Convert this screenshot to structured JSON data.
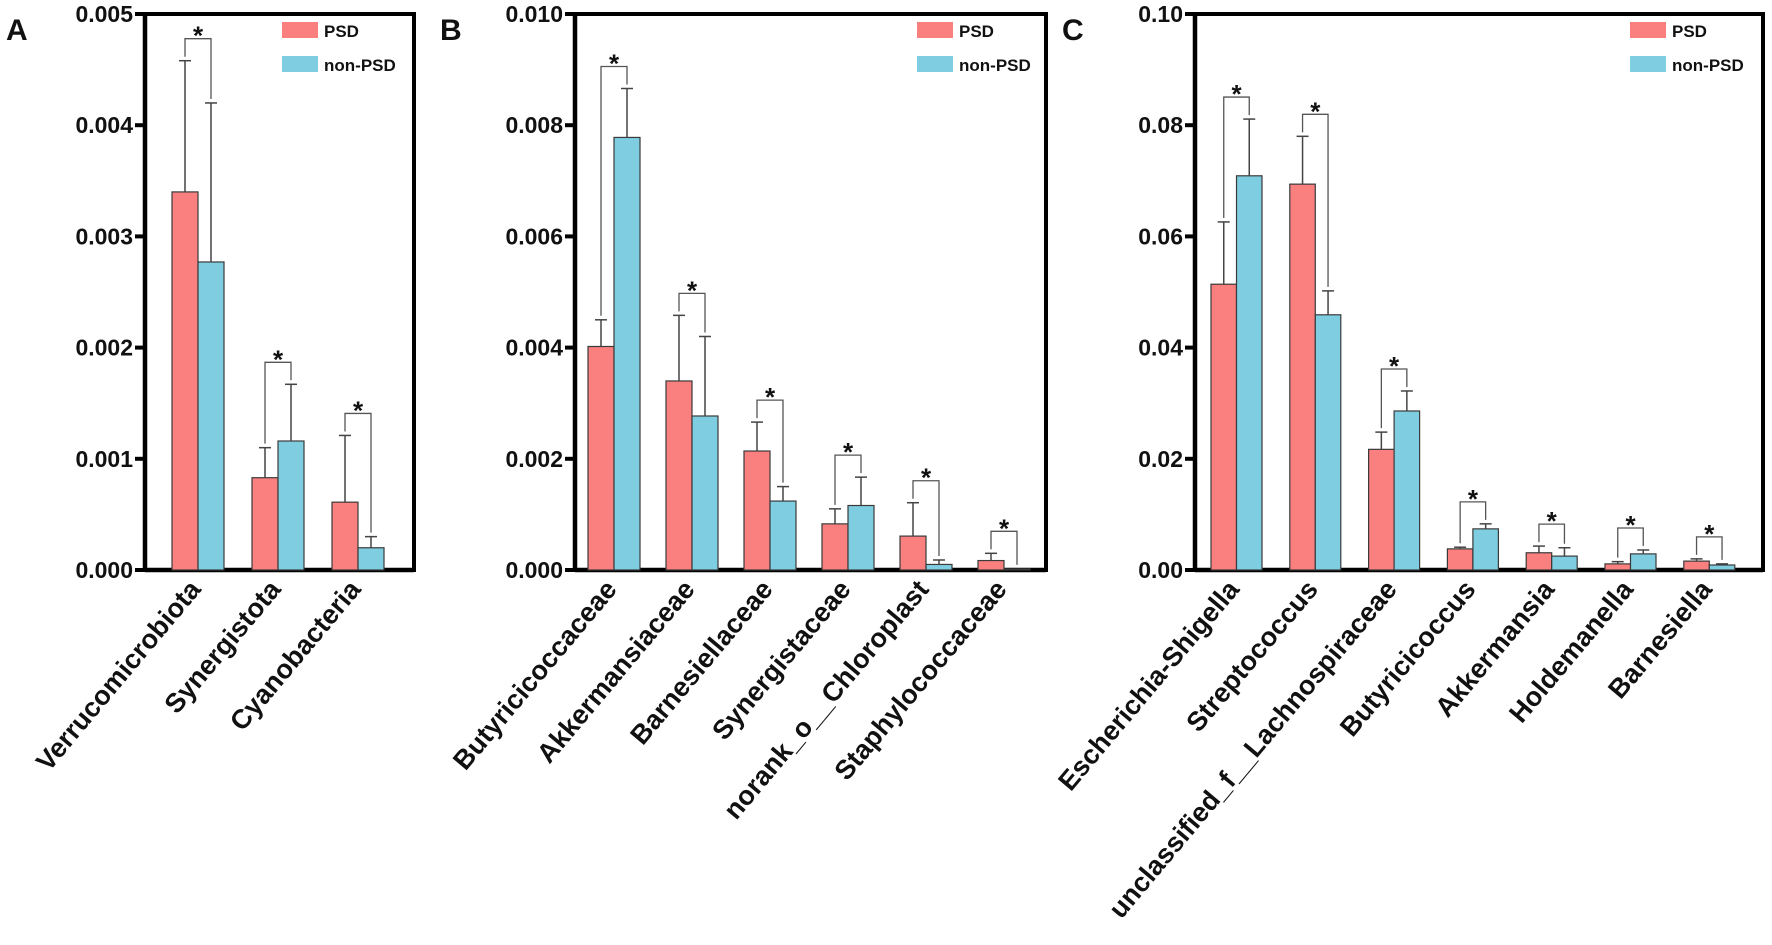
{
  "colors": {
    "PSD": "#FA7F7F",
    "non-PSD": "#7ECDE0",
    "outline": "#3a3a3a"
  },
  "chart_data": [
    {
      "type": "bar",
      "panel": "A",
      "ylim": [
        0,
        0.005
      ],
      "ticks": [
        0,
        0.001,
        0.002,
        0.003,
        0.004,
        0.005
      ],
      "tick_labels": [
        "0.000",
        "0.001",
        "0.002",
        "0.003",
        "0.004",
        "0.005"
      ],
      "legend": [
        "PSD",
        "non-PSD"
      ],
      "legend_position": "top-right",
      "categories": [
        "Verrucomicrobiota",
        "Synergistota",
        "Cyanobacteria"
      ],
      "series": [
        {
          "name": "PSD",
          "values": [
            0.0034,
            0.00083,
            0.00061
          ],
          "errors": [
            0.00458,
            0.0011,
            0.00121
          ]
        },
        {
          "name": "non-PSD",
          "values": [
            0.00277,
            0.00116,
            0.0002
          ],
          "errors": [
            0.0042,
            0.00167,
            0.0003
          ]
        }
      ],
      "significance": [
        "*",
        "*",
        "*"
      ]
    },
    {
      "type": "bar",
      "panel": "B",
      "ylim": [
        0,
        0.01
      ],
      "ticks": [
        0,
        0.002,
        0.004,
        0.006,
        0.008,
        0.01
      ],
      "tick_labels": [
        "0.000",
        "0.002",
        "0.004",
        "0.006",
        "0.008",
        "0.010"
      ],
      "legend": [
        "PSD",
        "non-PSD"
      ],
      "legend_position": "top-right",
      "categories": [
        "Butyricicoccaceae",
        "Akkermansiaceae",
        "Barnesiellaceae",
        "Synergistaceae",
        "norank_o__Chloroplast",
        "Staphylococcaceae"
      ],
      "series": [
        {
          "name": "PSD",
          "values": [
            0.00402,
            0.0034,
            0.00214,
            0.00083,
            0.00061,
            0.00017
          ],
          "errors": [
            0.0045,
            0.00458,
            0.00266,
            0.0011,
            0.00121,
            0.0003
          ]
        },
        {
          "name": "non-PSD",
          "values": [
            0.00778,
            0.00277,
            0.00124,
            0.00116,
            0.0001,
            2e-05
          ],
          "errors": [
            0.00866,
            0.0042,
            0.0015,
            0.00167,
            0.00018,
            2e-05
          ]
        }
      ],
      "significance": [
        "*",
        "*",
        "*",
        "*",
        "*",
        "*"
      ]
    },
    {
      "type": "bar",
      "panel": "C",
      "ylim": [
        0,
        0.1
      ],
      "ticks": [
        0,
        0.02,
        0.04,
        0.06,
        0.08,
        0.1
      ],
      "tick_labels": [
        "0.00",
        "0.02",
        "0.04",
        "0.06",
        "0.08",
        "0.10"
      ],
      "legend": [
        "PSD",
        "non-PSD"
      ],
      "legend_position": "top-right",
      "categories": [
        "Escherichia-Shigella",
        "Streptococcus",
        "unclassified_f__Lachnospiraceae",
        "Butyricicoccus",
        "Akkermansia",
        "Holdemanella",
        "Barnesiella"
      ],
      "series": [
        {
          "name": "PSD",
          "values": [
            0.0514,
            0.0694,
            0.0217,
            0.0038,
            0.0031,
            0.0011,
            0.0016
          ],
          "errors": [
            0.0626,
            0.078,
            0.0248,
            0.0041,
            0.0043,
            0.0015,
            0.002
          ]
        },
        {
          "name": "non-PSD",
          "values": [
            0.0709,
            0.0459,
            0.0286,
            0.0074,
            0.0025,
            0.0029,
            0.0009
          ],
          "errors": [
            0.0811,
            0.0502,
            0.0322,
            0.0083,
            0.004,
            0.0036,
            0.0011
          ]
        }
      ],
      "significance": [
        "*",
        "*",
        "*",
        "*",
        "*",
        "*",
        "*"
      ]
    }
  ]
}
